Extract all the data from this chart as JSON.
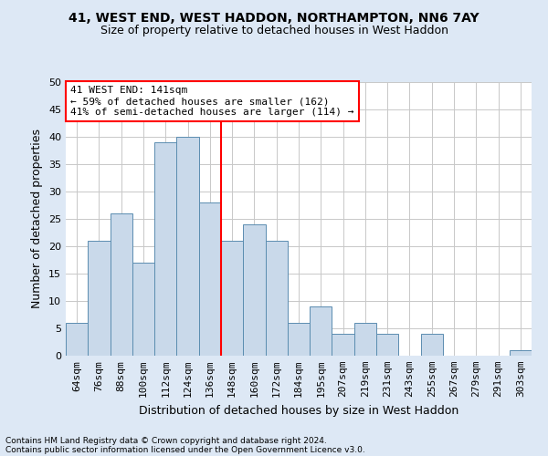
{
  "title1": "41, WEST END, WEST HADDON, NORTHAMPTON, NN6 7AY",
  "title2": "Size of property relative to detached houses in West Haddon",
  "xlabel": "Distribution of detached houses by size in West Haddon",
  "ylabel": "Number of detached properties",
  "footnote1": "Contains HM Land Registry data © Crown copyright and database right 2024.",
  "footnote2": "Contains public sector information licensed under the Open Government Licence v3.0.",
  "categories": [
    "64sqm",
    "76sqm",
    "88sqm",
    "100sqm",
    "112sqm",
    "124sqm",
    "136sqm",
    "148sqm",
    "160sqm",
    "172sqm",
    "184sqm",
    "195sqm",
    "207sqm",
    "219sqm",
    "231sqm",
    "243sqm",
    "255sqm",
    "267sqm",
    "279sqm",
    "291sqm",
    "303sqm"
  ],
  "values": [
    6,
    21,
    26,
    17,
    39,
    40,
    28,
    21,
    24,
    21,
    6,
    9,
    4,
    6,
    4,
    0,
    4,
    0,
    0,
    0,
    1
  ],
  "bar_color": "#c9d9ea",
  "bar_edge_color": "#5b8db0",
  "vline_x": 6.5,
  "vline_color": "red",
  "annotation_text": "41 WEST END: 141sqm\n← 59% of detached houses are smaller (162)\n41% of semi-detached houses are larger (114) →",
  "annotation_box_color": "white",
  "annotation_box_edge": "red",
  "ylim": [
    0,
    50
  ],
  "yticks": [
    0,
    5,
    10,
    15,
    20,
    25,
    30,
    35,
    40,
    45,
    50
  ],
  "bg_color": "#dde8f5",
  "plot_bg_color": "white",
  "grid_color": "#c8c8c8",
  "title1_fontsize": 10,
  "title2_fontsize": 9,
  "xlabel_fontsize": 9,
  "ylabel_fontsize": 9,
  "tick_fontsize": 8,
  "annot_fontsize": 8,
  "footnote_fontsize": 6.5
}
